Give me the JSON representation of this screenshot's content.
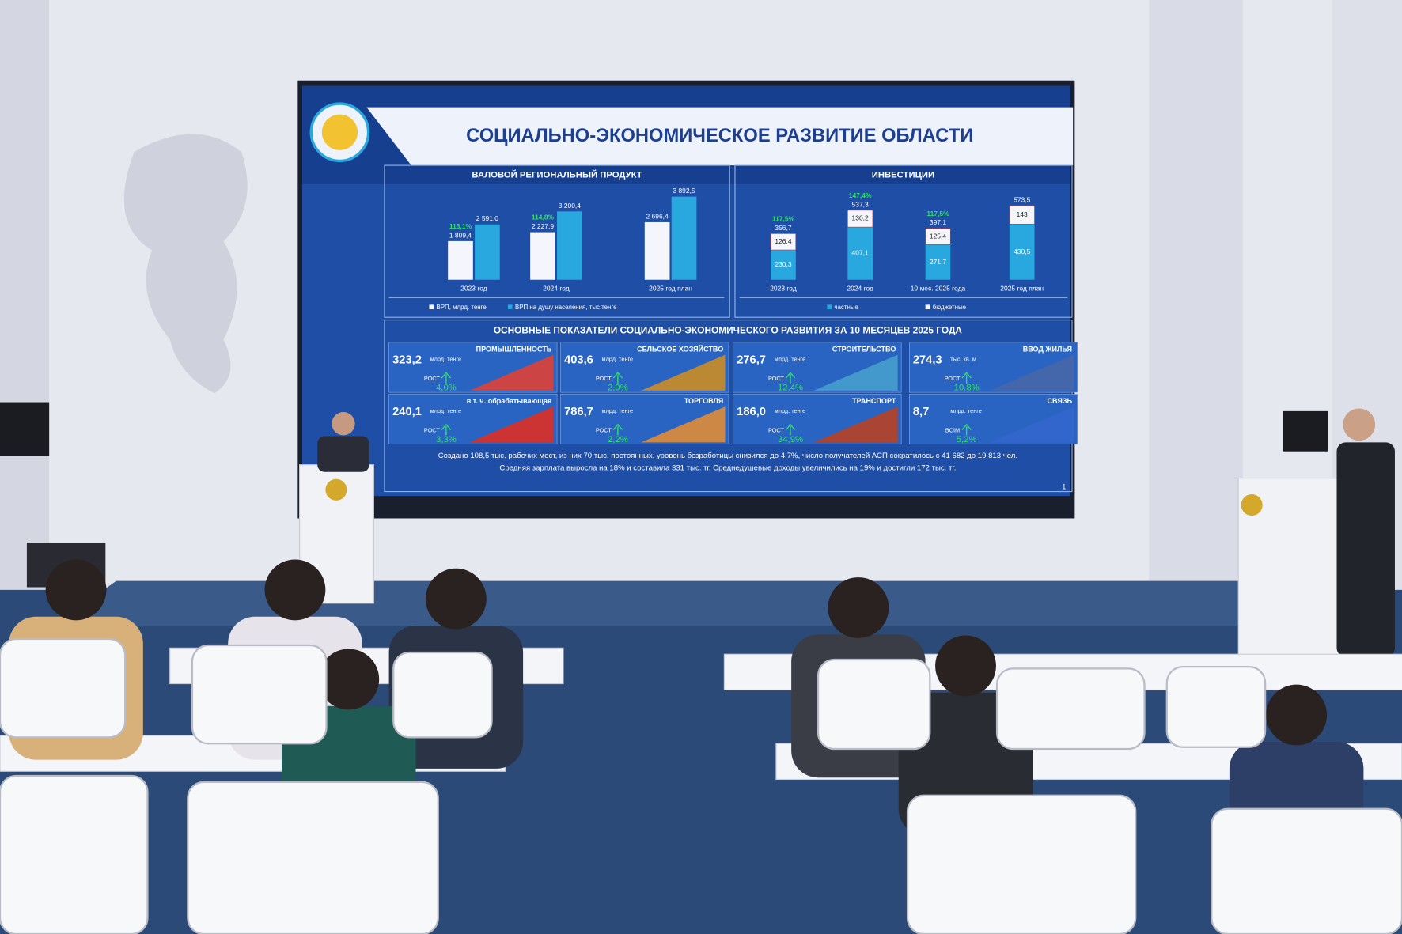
{
  "slide": {
    "title": "СОЦИАЛЬНО-ЭКОНОМИЧЕСКОЕ РАЗВИТИЕ ОБЛАСТИ",
    "grp": {
      "type": "bar",
      "title": "ВАЛОВОЙ РЕГИОНАЛЬНЫЙ ПРОДУКТ",
      "categories": [
        "2023 год",
        "2024 год",
        "2025 год план"
      ],
      "series": [
        {
          "name": "ВРП, млрд. тенге",
          "color": "#f4f6fb",
          "values": [
            1809.4,
            2227.9,
            2696.4
          ],
          "value_labels": [
            "1 809,4",
            "2 227,9",
            "2 696,4"
          ]
        },
        {
          "name": "ВРП на душу населения, тыс.тенге",
          "color": "#29a8e0",
          "values": [
            2591.0,
            3200.4,
            3892.5
          ],
          "value_labels": [
            "2 591,0",
            "3 200,4",
            "3 892,5"
          ]
        }
      ],
      "growth_labels": [
        "113,1%",
        "114,8%"
      ]
    },
    "investments": {
      "type": "stacked-bar",
      "title": "ИНВЕСТИЦИИ",
      "categories": [
        "2023 год",
        "2024 год",
        "10 мес. 2025 года",
        "2025 год план"
      ],
      "series": [
        {
          "name": "частные",
          "color": "#29a8e0",
          "values": [
            230.3,
            407.1,
            271.7,
            430.5
          ],
          "value_labels": [
            "230,3",
            "407,1",
            "271,7",
            "430,5"
          ]
        },
        {
          "name": "бюджетные",
          "color": "#f4f6fb",
          "values": [
            126.4,
            130.2,
            125.4,
            143
          ],
          "value_labels": [
            "126,4",
            "130,2",
            "125,4",
            "143"
          ]
        }
      ],
      "total_labels": [
        "356,7",
        "537,3",
        "397,1",
        "573,5"
      ],
      "growth_labels": [
        "117,5%",
        "147,4%",
        "117,5%"
      ]
    },
    "indicators": {
      "title": "ОСНОВНЫЕ ПОКАЗАТЕЛИ СОЦИАЛЬНО-ЭКОНОМИЧЕСКОГО РАЗВИТИЯ ЗА 10 МЕСЯЦЕВ 2025 ГОДА",
      "cards": [
        {
          "label": "ПРОМЫШЛЕННОСТЬ",
          "value": "323,2",
          "unit": "млрд. тенге",
          "growth_label": "РОСТ",
          "growth": "4,0%"
        },
        {
          "label": "СЕЛЬСКОЕ ХОЗЯЙСТВО",
          "value": "403,6",
          "unit": "млрд. тенге",
          "growth_label": "РОСТ",
          "growth": "2,0%"
        },
        {
          "label": "СТРОИТЕЛЬСТВО",
          "value": "276,7",
          "unit": "млрд. тенге",
          "growth_label": "РОСТ",
          "growth": "12,4%"
        },
        {
          "label": "ВВОД ЖИЛЬЯ",
          "value": "274,3",
          "unit": "тыс. кв. м",
          "growth_label": "РОСТ",
          "growth": "10,8%"
        },
        {
          "label": "в т. ч. обрабатывающая",
          "value": "240,1",
          "unit": "млрд. тенге",
          "growth_label": "РОСТ",
          "growth": "3,3%"
        },
        {
          "label": "ТОРГОВЛЯ",
          "value": "786,7",
          "unit": "млрд. тенге",
          "growth_label": "РОСТ",
          "growth": "2,2%"
        },
        {
          "label": "ТРАНСПОРТ",
          "value": "186,0",
          "unit": "млрд. тенге",
          "growth_label": "РОСТ",
          "growth": "34,9%"
        },
        {
          "label": "СВЯЗЬ",
          "value": "8,7",
          "unit": "млрд. тенге",
          "growth_label": "ӨСІМ",
          "growth": "5,2%"
        }
      ]
    },
    "footer": [
      "Создано 108,5 тыс. рабочих мест, из них 70 тыс. постоянных, уровень безработицы снизился до 4,7%, число получателей АСП сократилось с 41 682 до 19 813 чел.",
      "Средняя зарплата выросла на 18% и составила 331 тыс. тг. Среднедушевые доходы увеличились на 19% и достигли 172 тыс. тг."
    ],
    "page_number": "1"
  }
}
